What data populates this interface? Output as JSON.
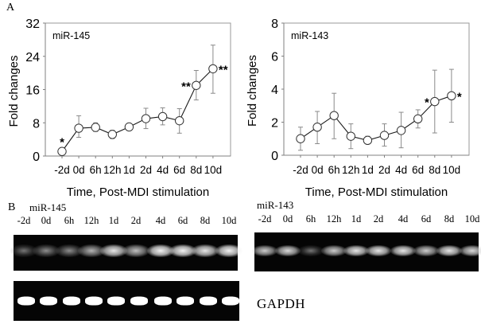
{
  "figure": {
    "panel_a_label": "A",
    "panel_b_label": "B"
  },
  "chart_data": [
    {
      "type": "line",
      "title": "miR-145",
      "xlabel": "Time, Post-MDI stimulation",
      "ylabel": "Fold changes",
      "categories": [
        "-2d",
        "0d",
        "6h",
        "12h",
        "1d",
        "2d",
        "4d",
        "6d",
        "8d",
        "10d"
      ],
      "values": [
        1.1,
        6.7,
        6.9,
        5.2,
        7.0,
        9.0,
        9.5,
        8.5,
        17.0,
        21.0
      ],
      "error_low": [
        1.1,
        4.5,
        5.9,
        4.2,
        7.0,
        6.6,
        7.5,
        5.5,
        13.5,
        15.1
      ],
      "error_high": [
        1.1,
        9.7,
        8.0,
        6.2,
        7.0,
        11.5,
        11.6,
        11.4,
        20.6,
        26.7
      ],
      "significance": [
        "*",
        "",
        "",
        "",
        "",
        "",
        "",
        "",
        "**",
        "**"
      ],
      "significance_side": [
        "above",
        "",
        "",
        "",
        "",
        "",
        "",
        "",
        "left",
        "right"
      ],
      "ylim": [
        0,
        32
      ],
      "yticks": [
        0,
        8,
        16,
        24,
        32
      ],
      "grid": false,
      "marker": "open-circle"
    },
    {
      "type": "line",
      "title": "miR-143",
      "xlabel": "Time, Post-MDI stimulation",
      "ylabel": "Fold changes",
      "categories": [
        "-2d",
        "0d",
        "6h",
        "12h",
        "1d",
        "2d",
        "4d",
        "6d",
        "8d",
        "10d"
      ],
      "values": [
        1.0,
        1.7,
        2.4,
        1.15,
        0.9,
        1.2,
        1.5,
        2.2,
        3.25,
        3.6
      ],
      "error_low": [
        0.3,
        0.7,
        1.0,
        0.4,
        0.75,
        0.55,
        0.45,
        1.65,
        1.35,
        2.0
      ],
      "error_high": [
        1.7,
        2.65,
        3.75,
        1.9,
        1.15,
        1.9,
        2.6,
        2.75,
        5.15,
        5.2
      ],
      "significance": [
        "",
        "",
        "",
        "",
        "",
        "",
        "",
        "",
        "*",
        "*"
      ],
      "significance_side": [
        "",
        "",
        "",
        "",
        "",
        "",
        "",
        "",
        "left",
        "right"
      ],
      "ylim": [
        0,
        8
      ],
      "yticks": [
        0,
        2,
        4,
        6,
        8
      ],
      "grid": false,
      "marker": "open-circle"
    }
  ],
  "gels": {
    "mir145": {
      "label": "miR-145",
      "lanes": [
        "-2d",
        "0d",
        "6h",
        "12h",
        "1d",
        "2d",
        "4d",
        "6d",
        "8d",
        "10d"
      ],
      "intensity": [
        0.45,
        0.55,
        0.55,
        0.7,
        0.9,
        0.75,
        0.95,
        0.95,
        0.9,
        0.95
      ]
    },
    "mir143": {
      "label": "miR-143",
      "lanes": [
        "-2d",
        "0d",
        "6h",
        "12h",
        "1d",
        "2d",
        "4d",
        "6d",
        "8d",
        "10d"
      ],
      "intensity": [
        0.8,
        0.85,
        0.45,
        0.8,
        0.9,
        0.9,
        0.9,
        0.8,
        0.9,
        0.85
      ]
    },
    "gapdh": {
      "label": "GAPDH",
      "intensity": [
        1,
        1,
        1,
        1,
        1,
        1,
        1,
        1,
        1,
        1
      ]
    }
  }
}
